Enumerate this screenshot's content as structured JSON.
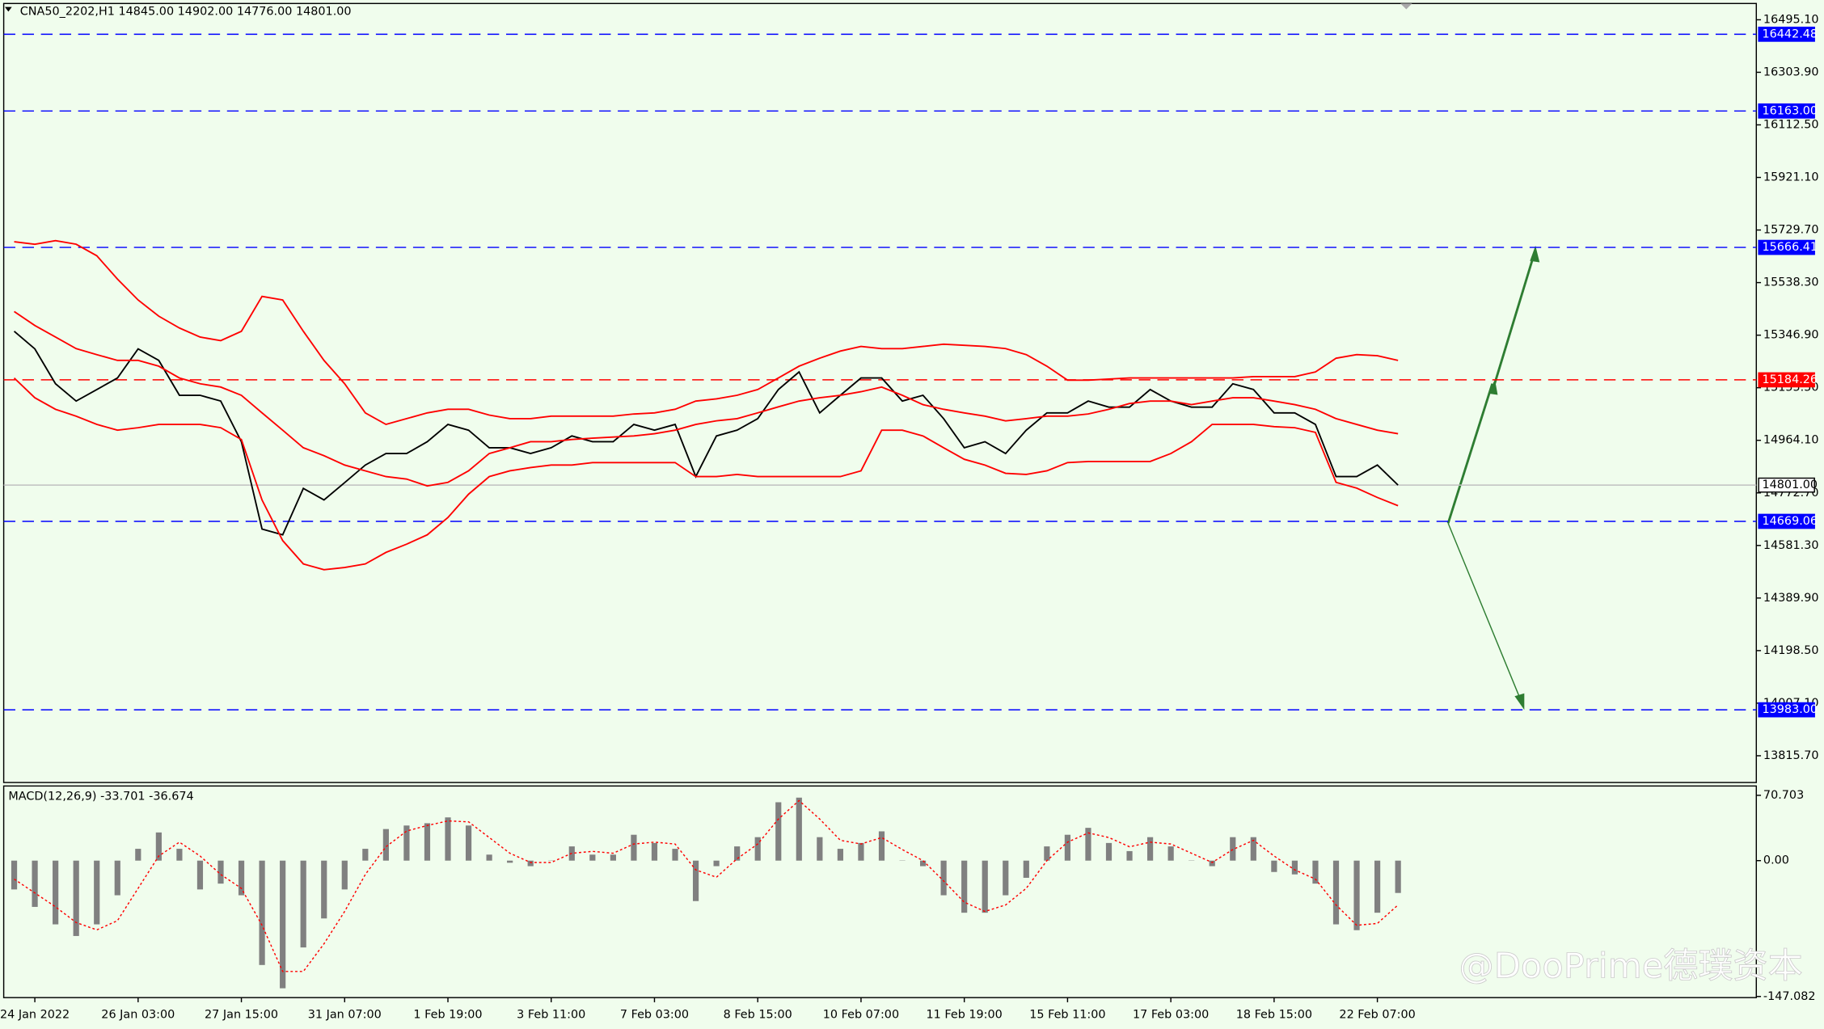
{
  "chart_data": [
    {
      "type": "line",
      "title": "CNA50_2202,H1  14845.00 14902.00 14776.00 14801.00",
      "watermark": "@DooPrime德璞资本",
      "categories": [
        null,
        "24 Jan 2022",
        null,
        null,
        null,
        null,
        "26 Jan 03:00",
        null,
        null,
        null,
        null,
        "27 Jan 15:00",
        null,
        null,
        null,
        null,
        "31 Jan 07:00",
        null,
        null,
        null,
        null,
        "1 Feb 19:00",
        null,
        null,
        null,
        null,
        "3 Feb 11:00",
        null,
        null,
        null,
        null,
        "7 Feb 03:00",
        null,
        null,
        null,
        null,
        "8 Feb 15:00",
        null,
        null,
        null,
        null,
        "10 Feb 07:00",
        null,
        null,
        null,
        null,
        "11 Feb 19:00",
        null,
        null,
        null,
        null,
        "15 Feb 11:00",
        null,
        null,
        null,
        null,
        "17 Feb 03:00",
        null,
        null,
        null,
        null,
        "18 Feb 15:00",
        null,
        null,
        null,
        null,
        "22 Feb 07:00",
        null
      ],
      "series": [
        {
          "color": "#000000",
          "values": [
            15361,
            15297,
            15170,
            15107,
            15149,
            15191,
            15297,
            15255,
            15128,
            15128,
            15107,
            14959,
            14641,
            14620,
            14789,
            14747,
            14810,
            14874,
            14916,
            14916,
            14959,
            15022,
            15001,
            14937,
            14937,
            14916,
            14937,
            14980,
            14959,
            14959,
            15022,
            15001,
            15022,
            14832,
            14980,
            15001,
            15043,
            15149,
            15213,
            15064,
            15128,
            15191,
            15191,
            15107,
            15128,
            15043,
            14937,
            14959,
            14916,
            15001,
            15064,
            15064,
            15107,
            15085,
            15085,
            15149,
            15107,
            15085,
            15085,
            15170,
            15149,
            15064,
            15064,
            15022,
            14832,
            14832,
            14874,
            14801
          ]
        },
        {
          "color": "#ff0000",
          "values": [
            15687,
            15678,
            15691,
            15678,
            15636,
            15551,
            15475,
            15416,
            15373,
            15340,
            15327,
            15361,
            15488,
            15475,
            15361,
            15255,
            15170,
            15064,
            15022,
            15043,
            15064,
            15077,
            15077,
            15056,
            15043,
            15043,
            15052,
            15052,
            15052,
            15052,
            15060,
            15064,
            15077,
            15107,
            15115,
            15128,
            15149,
            15191,
            15234,
            15263,
            15289,
            15306,
            15298,
            15298,
            15306,
            15314,
            15310,
            15306,
            15298,
            15276,
            15234,
            15183,
            15183,
            15187,
            15191,
            15191,
            15191,
            15191,
            15191,
            15191,
            15196,
            15196,
            15196,
            15213,
            15263,
            15276,
            15272,
            15255
          ]
        },
        {
          "color": "#ff0000",
          "values": [
            15433,
            15382,
            15340,
            15298,
            15276,
            15255,
            15255,
            15234,
            15191,
            15170,
            15158,
            15128,
            15064,
            15001,
            14937,
            14908,
            14874,
            14853,
            14832,
            14823,
            14798,
            14811,
            14853,
            14916,
            14937,
            14959,
            14959,
            14967,
            14972,
            14976,
            14980,
            14988,
            15001,
            15022,
            15035,
            15043,
            15064,
            15086,
            15107,
            15119,
            15128,
            15141,
            15158,
            15128,
            15094,
            15077,
            15064,
            15052,
            15035,
            15043,
            15052,
            15052,
            15060,
            15077,
            15098,
            15107,
            15107,
            15094,
            15107,
            15119,
            15119,
            15107,
            15094,
            15077,
            15043,
            15022,
            15001,
            14988
          ]
        },
        {
          "color": "#ff0000",
          "values": [
            15191,
            15119,
            15077,
            15052,
            15022,
            15001,
            15010,
            15022,
            15022,
            15022,
            15010,
            14967,
            14747,
            14599,
            14514,
            14493,
            14501,
            14514,
            14556,
            14586,
            14620,
            14683,
            14768,
            14832,
            14853,
            14865,
            14874,
            14874,
            14883,
            14883,
            14883,
            14883,
            14883,
            14832,
            14832,
            14840,
            14832,
            14832,
            14832,
            14832,
            14832,
            14853,
            15001,
            15001,
            14980,
            14937,
            14895,
            14874,
            14844,
            14840,
            14853,
            14883,
            14887,
            14887,
            14887,
            14887,
            14916,
            14959,
            15022,
            15022,
            15022,
            15014,
            15010,
            14993,
            14811,
            14790,
            14756,
            14726
          ]
        }
      ],
      "ylim": [
        13718.3,
        16554.4
      ],
      "yticks": [
        {
          "value": 16495.1,
          "label": "16495.10"
        },
        {
          "value": 16303.9,
          "label": "16303.90"
        },
        {
          "value": 16112.5,
          "label": "16112.50"
        },
        {
          "value": 15921.1,
          "label": "15921.10"
        },
        {
          "value": 15729.7,
          "label": "15729.70"
        },
        {
          "value": 15538.3,
          "label": "15538.30"
        },
        {
          "value": 15346.9,
          "label": "15346.90"
        },
        {
          "value": 15155.5,
          "label": "15155.50"
        },
        {
          "value": 14964.1,
          "label": "14964.10"
        },
        {
          "value": 14772.7,
          "label": "14772.70"
        },
        {
          "value": 14581.3,
          "label": "14581.30"
        },
        {
          "value": 14389.9,
          "label": "14389.90"
        },
        {
          "value": 14198.5,
          "label": "14198.50"
        },
        {
          "value": 14007.1,
          "label": "14007.10"
        },
        {
          "value": 13815.7,
          "label": "13815.70"
        }
      ],
      "levels": [
        {
          "value": 16442.48,
          "label": "16442.48",
          "color": "#0000ff"
        },
        {
          "value": 16163,
          "label": "16163.00",
          "color": "#0000ff"
        },
        {
          "value": 15666.41,
          "label": "15666.41",
          "color": "#0000ff"
        },
        {
          "value": 15184.26,
          "label": "15184.26",
          "color": "#ff0000"
        },
        {
          "value": 14801,
          "label": "14801.00",
          "color": "#c0c0c0"
        },
        {
          "value": 14669.06,
          "label": "14669.06",
          "color": "#0000ff"
        },
        {
          "value": 13983,
          "label": "13983.00",
          "color": "#0000ff"
        }
      ]
    },
    {
      "type": "bar",
      "title": "MACD(12,26,9) -33.701 -36.674",
      "series": [
        {
          "color": "#808080",
          "values": [
            -31.2,
            -50.1,
            -69.0,
            -81.6,
            -69.0,
            -37.5,
            12.8,
            30.5,
            12.8,
            -31.2,
            -24.9,
            -37.5,
            -113.0,
            -138.2,
            -94.0,
            -62.6,
            -31.2,
            12.8,
            34.2,
            38.0,
            40.5,
            46.8,
            38.0,
            6.5,
            -2.3,
            -6.0,
            0.3,
            15.4,
            6.5,
            6.5,
            28.0,
            19.1,
            12.8,
            -43.8,
            -6.0,
            15.4,
            25.4,
            63.2,
            68.2,
            25.4,
            12.8,
            19.1,
            31.7,
            0.3,
            -6.0,
            -37.5,
            -56.4,
            -56.4,
            -37.5,
            -18.6,
            15.4,
            28.0,
            35.5,
            19.1,
            10.3,
            25.4,
            15.4,
            0.3,
            -6.0,
            25.4,
            25.4,
            -12.3,
            -14.9,
            -24.9,
            -69.0,
            -75.3,
            -56.4,
            -35.0
          ]
        },
        {
          "color": "#ff0000",
          "type": "line",
          "values": [
            -20,
            -35,
            -50,
            -67,
            -75,
            -65,
            -30,
            5,
            20,
            5,
            -15,
            -30,
            -70,
            -120,
            -120,
            -90,
            -55,
            -15,
            15,
            32,
            38,
            43,
            42,
            25,
            8,
            -2,
            -2,
            8,
            10,
            8,
            18,
            20,
            18,
            -10,
            -18,
            2,
            18,
            45,
            65,
            45,
            22,
            18,
            25,
            12,
            0,
            -22,
            -45,
            -55,
            -48,
            -30,
            0,
            20,
            30,
            25,
            15,
            20,
            18,
            8,
            -2,
            12,
            22,
            5,
            -10,
            -20,
            -48,
            -70,
            -68,
            -48
          ]
        }
      ],
      "ylim": [
        -148.3,
        80.8
      ],
      "yticks": [
        70.703,
        {
          "value": 0,
          "label": "0.00"
        },
        -147.082
      ]
    }
  ]
}
